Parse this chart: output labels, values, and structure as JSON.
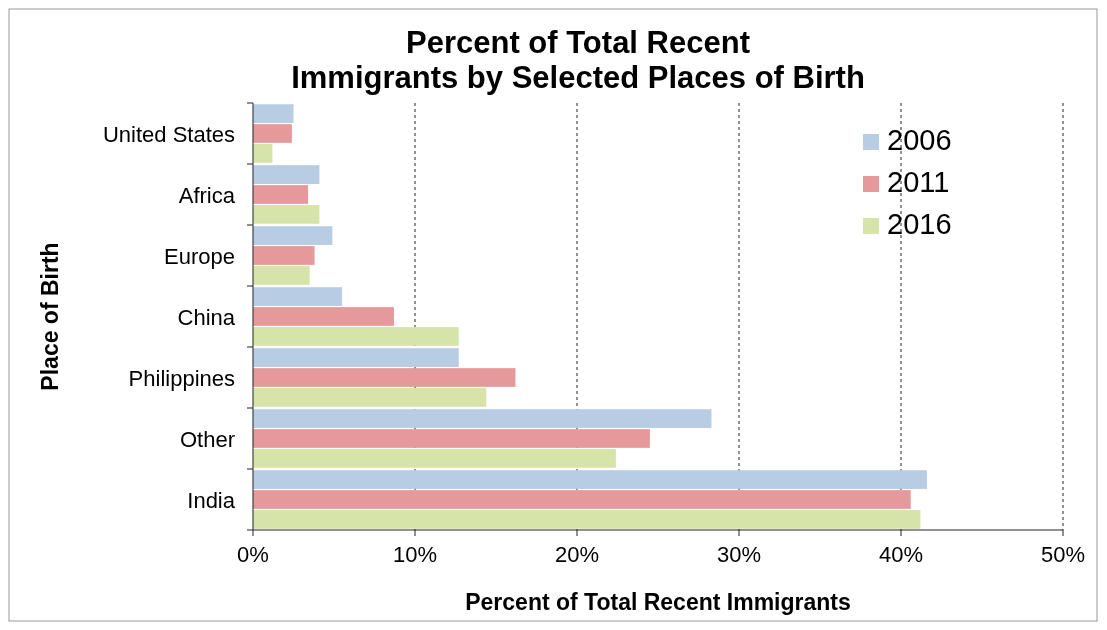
{
  "chart_data": {
    "type": "bar",
    "orientation": "horizontal",
    "title": "Percent of Total Recent Immigrants by Selected Places of Birth",
    "xlabel": "Percent of Total Recent Immigrants",
    "ylabel": "Place of Birth",
    "categories": [
      "United States",
      "Africa",
      "Europe",
      "China",
      "Philippines",
      "Other",
      "India"
    ],
    "series": [
      {
        "name": "2006",
        "color": "#b8cce4",
        "values": [
          2.5,
          4.1,
          4.9,
          5.5,
          12.7,
          28.3,
          41.6
        ]
      },
      {
        "name": "2011",
        "color": "#e6999a",
        "values": [
          2.4,
          3.4,
          3.8,
          8.7,
          16.2,
          24.5,
          40.6
        ]
      },
      {
        "name": "2016",
        "color": "#d7e4a9",
        "values": [
          1.2,
          4.1,
          3.5,
          12.7,
          14.4,
          22.4,
          41.2
        ]
      }
    ],
    "xlim": [
      0,
      50
    ],
    "xticks": [
      {
        "value": 0,
        "label": "0%"
      },
      {
        "value": 10,
        "label": "10%"
      },
      {
        "value": 20,
        "label": "20%"
      },
      {
        "value": 30,
        "label": "30%"
      },
      {
        "value": 40,
        "label": "40%"
      },
      {
        "value": 50,
        "label": "50%"
      }
    ],
    "grid": "x",
    "legend": "top right"
  }
}
